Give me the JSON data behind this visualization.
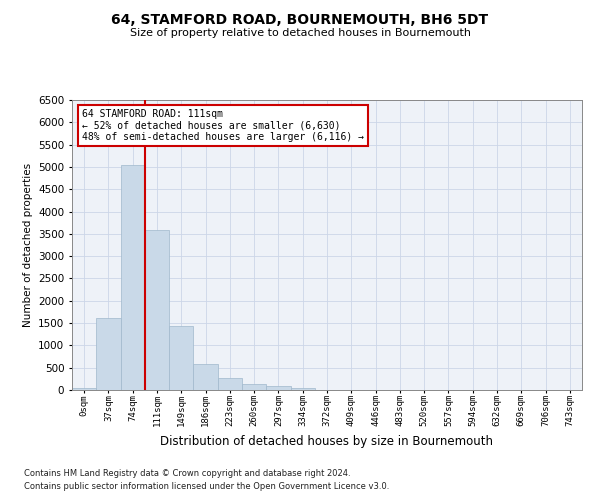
{
  "title": "64, STAMFORD ROAD, BOURNEMOUTH, BH6 5DT",
  "subtitle": "Size of property relative to detached houses in Bournemouth",
  "xlabel": "Distribution of detached houses by size in Bournemouth",
  "ylabel": "Number of detached properties",
  "footnote1": "Contains HM Land Registry data © Crown copyright and database right 2024.",
  "footnote2": "Contains public sector information licensed under the Open Government Licence v3.0.",
  "bar_labels": [
    "0sqm",
    "37sqm",
    "74sqm",
    "111sqm",
    "149sqm",
    "186sqm",
    "223sqm",
    "260sqm",
    "297sqm",
    "334sqm",
    "372sqm",
    "409sqm",
    "446sqm",
    "483sqm",
    "520sqm",
    "557sqm",
    "594sqm",
    "632sqm",
    "669sqm",
    "706sqm",
    "743sqm"
  ],
  "bar_heights": [
    50,
    1620,
    5050,
    3580,
    1430,
    580,
    270,
    130,
    80,
    40,
    0,
    0,
    0,
    0,
    0,
    0,
    0,
    0,
    0,
    0,
    0
  ],
  "bar_color": "#c9d9e8",
  "bar_edge_color": "#a0b8cc",
  "vline_color": "#cc0000",
  "ylim": [
    0,
    6500
  ],
  "yticks": [
    0,
    500,
    1000,
    1500,
    2000,
    2500,
    3000,
    3500,
    4000,
    4500,
    5000,
    5500,
    6000,
    6500
  ],
  "annotation_title": "64 STAMFORD ROAD: 111sqm",
  "annotation_line1": "← 52% of detached houses are smaller (6,630)",
  "annotation_line2": "48% of semi-detached houses are larger (6,116) →",
  "annotation_box_color": "#cc0000",
  "grid_color": "#ccd6e8",
  "bg_color": "#eef2f8"
}
